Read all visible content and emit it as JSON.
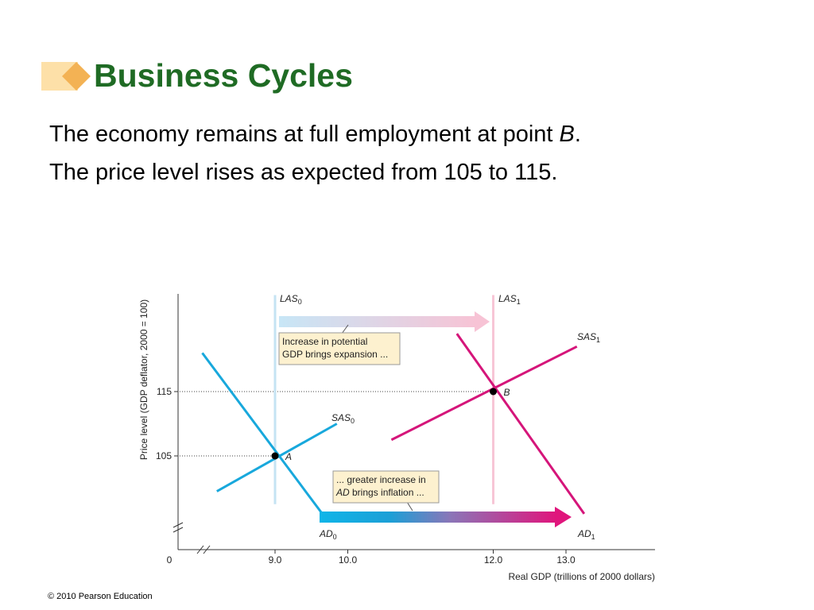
{
  "slide": {
    "title": "Business Cycles",
    "bullets": [
      {
        "text": "The economy remains at full employment at point ",
        "emph": "B",
        "tail": "."
      },
      {
        "text": "The price level rises as expected from 105 to 115.",
        "emph": "",
        "tail": ""
      }
    ],
    "footer": "© 2010 Pearson Education"
  },
  "colors": {
    "title": "#1f6b24",
    "blue": "#18a8dc",
    "magenta": "#d5157a",
    "las0": "#c5e3f3",
    "las1": "#f7c6d6"
  },
  "chart_data": {
    "type": "line",
    "xlabel": "Real GDP (trillions of 2000 dollars)",
    "ylabel": "Price level (GDP deflator, 2000 = 100)",
    "x_ticks": [
      {
        "value": 9.0,
        "label": "9.0"
      },
      {
        "value": 10.0,
        "label": "10.0"
      },
      {
        "value": 12.0,
        "label": "12.0"
      },
      {
        "value": 13.0,
        "label": "13.0"
      }
    ],
    "y_ticks": [
      {
        "value": 105,
        "label": "105"
      },
      {
        "value": 115,
        "label": "115"
      }
    ],
    "origin_label": "0",
    "series": [
      {
        "name": "LAS",
        "sub": "0",
        "color": "#c5e3f3",
        "points": [
          [
            9.0,
            97.5
          ],
          [
            9.0,
            130
          ]
        ]
      },
      {
        "name": "LAS",
        "sub": "1",
        "color": "#f7c6d6",
        "points": [
          [
            12.0,
            97.5
          ],
          [
            12.0,
            130
          ]
        ]
      },
      {
        "name": "AD",
        "sub": "0",
        "color": "#18a8dc",
        "points": [
          [
            8.0,
            121
          ],
          [
            9.65,
            96
          ]
        ]
      },
      {
        "name": "SAS",
        "sub": "0",
        "color": "#18a8dc",
        "points": [
          [
            8.2,
            99.5
          ],
          [
            9.85,
            110
          ]
        ]
      },
      {
        "name": "AD",
        "sub": "1",
        "color": "#d5157a",
        "points": [
          [
            11.5,
            124
          ],
          [
            13.25,
            96
          ]
        ]
      },
      {
        "name": "SAS",
        "sub": "1",
        "color": "#d5157a",
        "points": [
          [
            10.6,
            107.5
          ],
          [
            13.15,
            122
          ]
        ]
      }
    ],
    "points": [
      {
        "label": "A",
        "x": 9.0,
        "y": 105
      },
      {
        "label": "B",
        "x": 12.0,
        "y": 115
      }
    ],
    "annotations": [
      {
        "lines": [
          "Increase in potential",
          "GDP brings expansion ..."
        ]
      },
      {
        "lines": [
          "... greater increase in",
          "AD brings inflation ..."
        ]
      }
    ]
  }
}
